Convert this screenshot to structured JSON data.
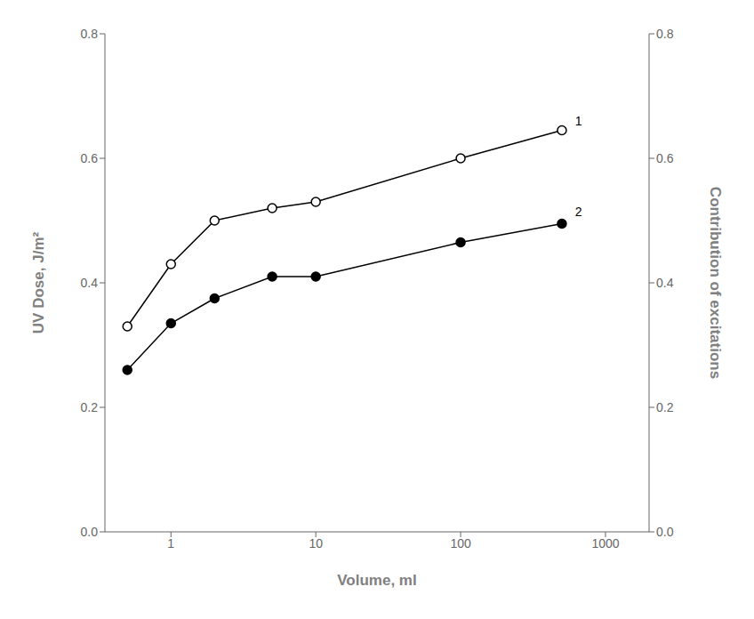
{
  "chart_data": {
    "type": "line",
    "xlabel": "Volume, ml",
    "ylabel": "UV Dose, J/m²",
    "y2label": "Contribution of excitations",
    "x": [
      0.5,
      1.0,
      2.0,
      5.0,
      10.0,
      100.0,
      500.0
    ],
    "series": [
      {
        "color": "#000000",
        "marker": "circle_open",
        "values": [
          0.33,
          0.43,
          0.5,
          0.52,
          0.53,
          0.6,
          0.645
        ]
      },
      {
        "color": "#000000",
        "marker": "circle",
        "values": [
          0.26,
          0.335,
          0.375,
          0.41,
          0.41,
          0.465,
          0.495
        ]
      }
    ],
    "log": "x",
    "xlim": [
      0.35,
      2000
    ],
    "xticks": [
      1,
      10,
      100,
      1000
    ],
    "ylim": [
      0,
      0.8
    ],
    "yticks": [
      {
        "value": 0,
        "label": "0.0"
      },
      0.2,
      0.4,
      0.6,
      0.8
    ],
    "y2lim": [
      0,
      0.8
    ],
    "y2ticks": [
      {
        "value": 0,
        "label": "0.0"
      },
      0.2,
      0.4,
      0.6,
      0.8
    ],
    "grid": false,
    "annotations": [
      {
        "text": "1",
        "x": 600,
        "y": 0.66
      },
      {
        "text": "2",
        "x": 600,
        "y": 0.515
      }
    ]
  }
}
